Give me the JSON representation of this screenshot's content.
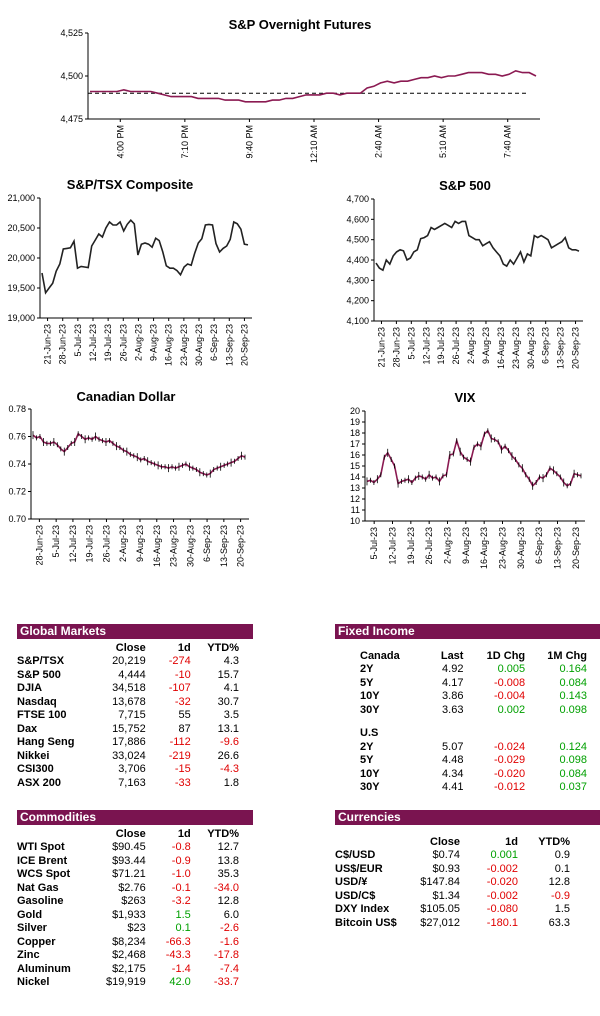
{
  "chart_data": [
    {
      "id": "spx_futures",
      "type": "line",
      "title": "S&P Overnight Futures",
      "yticks": [
        "4,475",
        "4,500",
        "4,525"
      ],
      "ylim": [
        4475,
        4525
      ],
      "xticks": [
        "4:00 PM",
        "7:10 PM",
        "9:40 PM",
        "12:10 AM",
        "2:40 AM",
        "5:10 AM",
        "7:40 AM"
      ],
      "reference_line": 4490,
      "series": [
        {
          "values": [
            4491,
            4491,
            4491,
            4491,
            4491,
            4492,
            4491,
            4491,
            4491,
            4491,
            4490,
            4489,
            4488,
            4488,
            4488,
            4488,
            4487,
            4487,
            4487,
            4487,
            4486,
            4486,
            4486,
            4485,
            4485,
            4485,
            4485,
            4486,
            4486,
            4487,
            4487,
            4488,
            4489,
            4489,
            4489,
            4490,
            4490,
            4489,
            4490,
            4490,
            4490,
            4493,
            4494,
            4496,
            4497,
            4496,
            4497,
            4497,
            4498,
            4499,
            4499,
            4500,
            4499,
            4500,
            4500,
            4501,
            4502,
            4502,
            4502,
            4501,
            4501,
            4500,
            4501,
            4503,
            4502,
            4502,
            4500
          ]
        }
      ],
      "color": "#8b1a52"
    },
    {
      "id": "tsx",
      "type": "line",
      "title": "S&P/TSX Composite",
      "yticks": [
        "19,000",
        "19,500",
        "20,000",
        "20,500",
        "21,000"
      ],
      "ylim": [
        19000,
        21000
      ],
      "xticks": [
        "21-Jun-23",
        "28-Jun-23",
        "5-Jul-23",
        "12-Jul-23",
        "19-Jul-23",
        "26-Jul-23",
        "2-Aug-23",
        "9-Aug-23",
        "16-Aug-23",
        "23-Aug-23",
        "30-Aug-23",
        "6-Sep-23",
        "13-Sep-23",
        "20-Sep-23"
      ],
      "series": [
        {
          "values": [
            19750,
            19420,
            19500,
            19580,
            19780,
            19900,
            20150,
            20160,
            20170,
            20280,
            19830,
            19860,
            19850,
            19840,
            20200,
            20300,
            20400,
            20350,
            20500,
            20600,
            20550,
            20550,
            20600,
            20450,
            20560,
            20630,
            20570,
            20050,
            20230,
            20250,
            20230,
            20180,
            20330,
            20290,
            20100,
            19870,
            19830,
            19830,
            19790,
            19720,
            19850,
            19900,
            19880,
            20080,
            20250,
            20320,
            20550,
            20560,
            20550,
            20240,
            20100,
            20160,
            20200,
            20310,
            20600,
            20570,
            20480,
            20230,
            20219
          ]
        }
      ],
      "color": "#222222"
    },
    {
      "id": "spx",
      "type": "line",
      "title": "S&P 500",
      "yticks": [
        "4,100",
        "4,200",
        "4,300",
        "4,400",
        "4,500",
        "4,600",
        "4,700"
      ],
      "ylim": [
        4100,
        4700
      ],
      "xticks": [
        "21-Jun-23",
        "28-Jun-23",
        "5-Jul-23",
        "12-Jul-23",
        "19-Jul-23",
        "26-Jul-23",
        "2-Aug-23",
        "9-Aug-23",
        "16-Aug-23",
        "23-Aug-23",
        "30-Aug-23",
        "6-Sep-23",
        "13-Sep-23",
        "20-Sep-23"
      ],
      "series": [
        {
          "values": [
            4385,
            4360,
            4350,
            4400,
            4380,
            4420,
            4440,
            4450,
            4445,
            4400,
            4410,
            4440,
            4450,
            4505,
            4510,
            4520,
            4560,
            4550,
            4560,
            4570,
            4580,
            4570,
            4560,
            4590,
            4580,
            4590,
            4590,
            4520,
            4510,
            4500,
            4500,
            4470,
            4480,
            4490,
            4460,
            4440,
            4420,
            4380,
            4370,
            4400,
            4380,
            4410,
            4440,
            4390,
            4430,
            4420,
            4520,
            4510,
            4520,
            4510,
            4500,
            4460,
            4470,
            4480,
            4490,
            4510,
            4460,
            4450,
            4450,
            4444
          ]
        }
      ],
      "color": "#222222"
    },
    {
      "id": "cad",
      "type": "line",
      "title": "Canadian Dollar",
      "yticks": [
        "0.70",
        "0.72",
        "0.74",
        "0.76",
        "0.78"
      ],
      "ylim": [
        0.7,
        0.78
      ],
      "xticks": [
        "28-Jun-23",
        "5-Jul-23",
        "12-Jul-23",
        "19-Jul-23",
        "26-Jul-23",
        "2-Aug-23",
        "9-Aug-23",
        "16-Aug-23",
        "23-Aug-23",
        "30-Aug-23",
        "6-Sep-23",
        "13-Sep-23",
        "20-Sep-23"
      ],
      "series": [
        {
          "values": [
            0.761,
            0.759,
            0.76,
            0.756,
            0.755,
            0.755,
            0.756,
            0.754,
            0.751,
            0.749,
            0.752,
            0.755,
            0.756,
            0.762,
            0.76,
            0.758,
            0.759,
            0.758,
            0.76,
            0.758,
            0.757,
            0.756,
            0.757,
            0.755,
            0.753,
            0.752,
            0.75,
            0.749,
            0.747,
            0.746,
            0.745,
            0.743,
            0.744,
            0.742,
            0.741,
            0.74,
            0.739,
            0.738,
            0.738,
            0.737,
            0.738,
            0.737,
            0.738,
            0.739,
            0.74,
            0.738,
            0.737,
            0.736,
            0.734,
            0.733,
            0.732,
            0.733,
            0.736,
            0.737,
            0.738,
            0.739,
            0.74,
            0.741,
            0.742,
            0.744,
            0.746,
            0.745
          ]
        }
      ],
      "color": "#8b1a52"
    },
    {
      "id": "vix",
      "type": "line",
      "title": "VIX",
      "yticks": [
        "10",
        "11",
        "12",
        "13",
        "14",
        "15",
        "16",
        "17",
        "18",
        "19",
        "20"
      ],
      "ylim": [
        10,
        20
      ],
      "xticks": [
        "5-Jul-23",
        "12-Jul-23",
        "19-Jul-23",
        "26-Jul-23",
        "2-Aug-23",
        "9-Aug-23",
        "16-Aug-23",
        "23-Aug-23",
        "30-Aug-23",
        "6-Sep-23",
        "13-Sep-23",
        "20-Sep-23"
      ],
      "series": [
        {
          "values": [
            13.6,
            13.7,
            13.5,
            13.8,
            14.2,
            15.8,
            16.2,
            15.6,
            15.0,
            13.4,
            13.6,
            13.7,
            13.8,
            13.5,
            13.9,
            14.1,
            14.0,
            13.8,
            14.2,
            13.9,
            14.0,
            13.6,
            14.1,
            14.2,
            16.0,
            16.1,
            17.3,
            16.3,
            15.8,
            15.6,
            15.4,
            16.7,
            17.0,
            16.8,
            17.9,
            18.2,
            17.5,
            17.4,
            17.2,
            16.5,
            16.8,
            16.4,
            15.9,
            15.6,
            15.1,
            14.8,
            14.2,
            13.8,
            13.2,
            13.5,
            14.0,
            13.9,
            14.2,
            14.8,
            14.6,
            14.3,
            14.0,
            13.5,
            13.2,
            13.4,
            14.3,
            14.2,
            14.1
          ]
        }
      ],
      "color": "#8b1a52"
    }
  ],
  "global_markets": {
    "title": "Global Markets",
    "headers": [
      "",
      "Close",
      "1d",
      "YTD%"
    ],
    "rows": [
      [
        "S&P/TSX",
        "20,219",
        "-274",
        "4.3"
      ],
      [
        "S&P 500",
        "4,444",
        "-10",
        "15.7"
      ],
      [
        "DJIA",
        "34,518",
        "-107",
        "4.1"
      ],
      [
        "Nasdaq",
        "13,678",
        "-32",
        "30.7"
      ],
      [
        "FTSE 100",
        "7,715",
        "55",
        "3.5"
      ],
      [
        "Dax",
        "15,752",
        "87",
        "13.1"
      ],
      [
        "Hang Seng",
        "17,886",
        "-112",
        "-9.6"
      ],
      [
        "Nikkei",
        "33,024",
        "-219",
        "26.6"
      ],
      [
        "CSI300",
        "3,706",
        "-15",
        "-4.3"
      ],
      [
        "ASX 200",
        "7,163",
        "-33",
        "1.8"
      ]
    ]
  },
  "fixed_income": {
    "title": "Fixed Income",
    "headers": [
      "Canada",
      "Last",
      "1D Chg",
      "1M Chg"
    ],
    "canada": [
      [
        "2Y",
        "4.92",
        "0.005",
        "0.164"
      ],
      [
        "5Y",
        "4.17",
        "-0.008",
        "0.084"
      ],
      [
        "10Y",
        "3.86",
        "-0.004",
        "0.143"
      ],
      [
        "30Y",
        "3.63",
        "0.002",
        "0.098"
      ]
    ],
    "us_label": "U.S",
    "us": [
      [
        "2Y",
        "5.07",
        "-0.024",
        "0.124"
      ],
      [
        "5Y",
        "4.48",
        "-0.029",
        "0.098"
      ],
      [
        "10Y",
        "4.34",
        "-0.020",
        "0.084"
      ],
      [
        "30Y",
        "4.41",
        "-0.012",
        "0.037"
      ]
    ]
  },
  "commodities": {
    "title": "Commodities",
    "headers": [
      "",
      "Close",
      "1d",
      "YTD%"
    ],
    "rows": [
      [
        "WTI Spot",
        "$90.45",
        "-0.8",
        "12.7"
      ],
      [
        "ICE Brent",
        "$93.44",
        "-0.9",
        "13.8"
      ],
      [
        "WCS Spot",
        "$71.21",
        "-1.0",
        "35.3"
      ],
      [
        "Nat Gas",
        "$2.76",
        "-0.1",
        "-34.0"
      ],
      [
        "Gasoline",
        "$263",
        "-3.2",
        "12.8"
      ],
      [
        "Gold",
        "$1,933",
        "1.5",
        "6.0"
      ],
      [
        "Silver",
        "$23",
        "0.1",
        "-2.6"
      ],
      [
        "Copper",
        "$8,234",
        "-66.3",
        "-1.6"
      ],
      [
        "Zinc",
        "$2,468",
        "-43.3",
        "-17.8"
      ],
      [
        "Aluminum",
        "$2,175",
        "-1.4",
        "-7.4"
      ],
      [
        "Nickel",
        "$19,919",
        "42.0",
        "-33.7"
      ]
    ]
  },
  "currencies": {
    "title": "Currencies",
    "headers": [
      "",
      "Close",
      "1d",
      "YTD%"
    ],
    "rows": [
      [
        "C$/USD",
        "$0.74",
        "0.001",
        "0.9"
      ],
      [
        "US$/EUR",
        "$0.93",
        "-0.002",
        "0.1"
      ],
      [
        "USD/¥",
        "$147.84",
        "-0.020",
        "12.8"
      ],
      [
        "USD/C$",
        "$1.34",
        "-0.002",
        "-0.9"
      ],
      [
        "DXY Index",
        "$105.05",
        "-0.080",
        "1.5"
      ],
      [
        "Bitcoin US$",
        "$27,012",
        "-180.1",
        "63.3"
      ]
    ]
  },
  "colors": {
    "header_bg": "#7a1450",
    "neg": "#e00000",
    "pos": "#00a000",
    "line_maroon": "#8b1a52"
  }
}
